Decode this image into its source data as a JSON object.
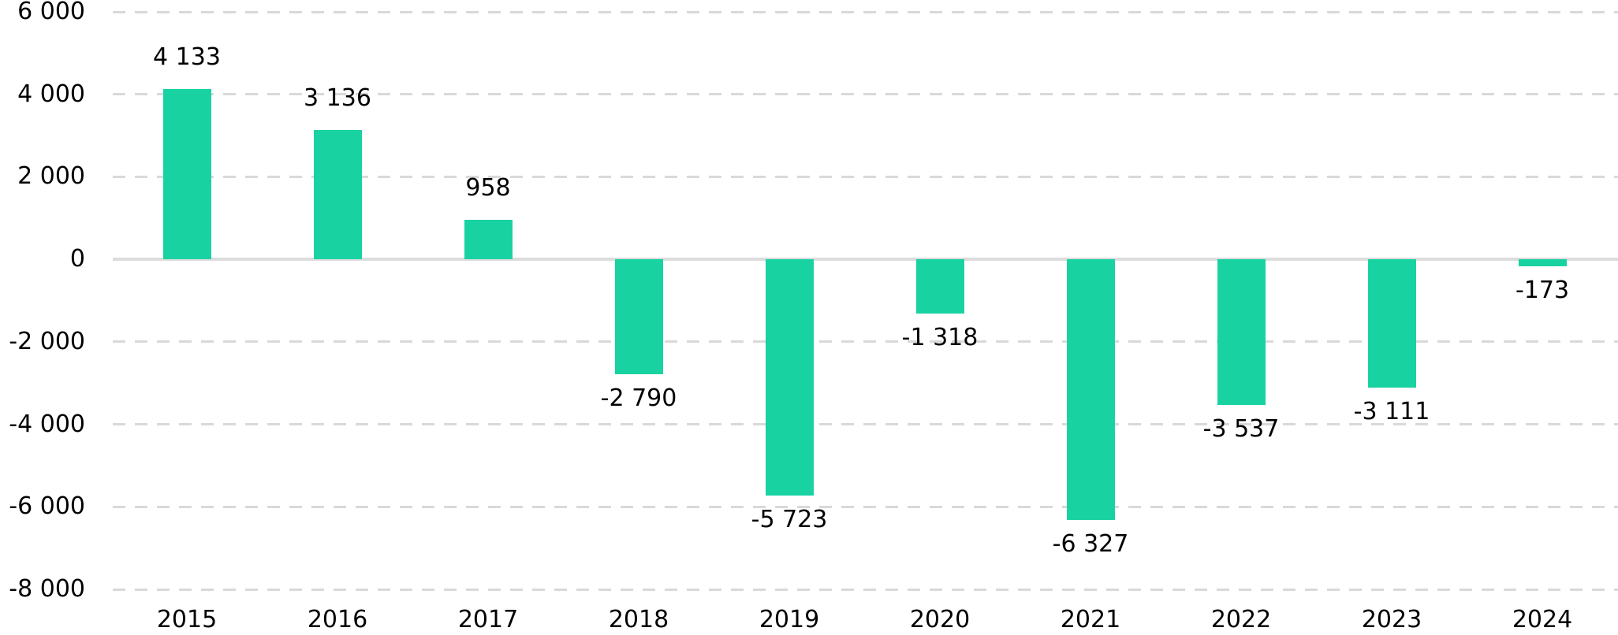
{
  "chart_data": {
    "type": "bar",
    "title": "",
    "xlabel": "",
    "ylabel": "",
    "categories": [
      "2015",
      "2016",
      "2017",
      "2018",
      "2019",
      "2020",
      "2021",
      "2022",
      "2023",
      "2024"
    ],
    "values": [
      4133,
      3136,
      958,
      -2790,
      -5723,
      -1318,
      -6327,
      -3537,
      -3111,
      -173
    ],
    "value_labels": [
      "4 133",
      "3 136",
      "958",
      "-2 790",
      "-5 723",
      "-1 318",
      "-6 327",
      "-3 537",
      "-3 111",
      "-173"
    ],
    "ylim": [
      -8000,
      6000
    ],
    "ytick_step": 2000,
    "yticks": [
      6000,
      4000,
      2000,
      0,
      -2000,
      -4000,
      -6000,
      -8000
    ],
    "ytick_labels": [
      "6 000",
      "4 000",
      "2 000",
      "0",
      "-2 000",
      "-4 000",
      "-6 000",
      "-8 000"
    ],
    "grid": "horizontal-dashed",
    "zero_line": "solid",
    "legend": "none",
    "colors": {
      "bar": "#19d2a2",
      "grid": "#d9d9d9",
      "zero_line": "#dcdcdc",
      "text": "#000000",
      "background": "#ffffff"
    }
  }
}
